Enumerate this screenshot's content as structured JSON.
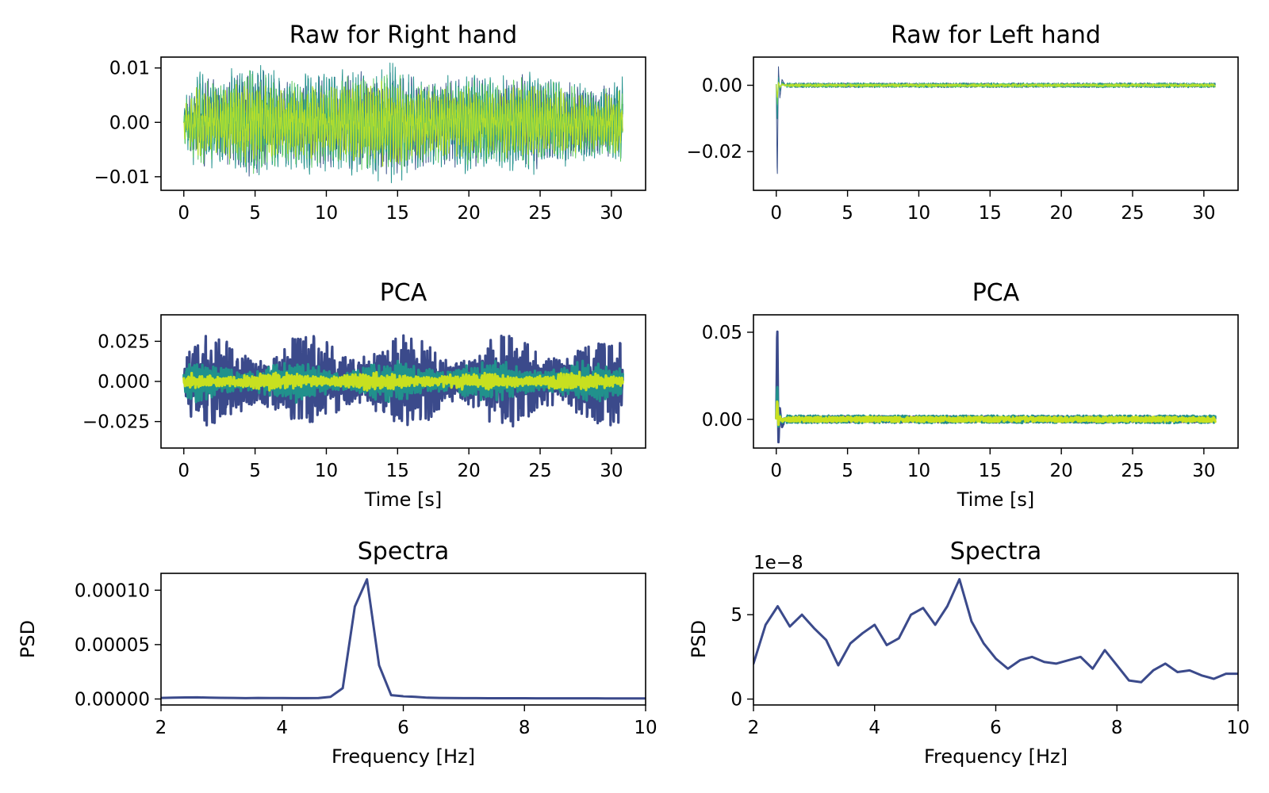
{
  "chart_data": [
    {
      "id": "raw-right",
      "type": "line",
      "title": "Raw for Right hand",
      "xlabel": "",
      "ylabel": "",
      "xlim": [
        -1.6,
        32.4
      ],
      "ylim": [
        -0.0125,
        0.012
      ],
      "xticks": [
        0,
        5,
        10,
        15,
        20,
        25,
        30
      ],
      "xtick_labels": [
        "0",
        "5",
        "10",
        "15",
        "20",
        "25",
        "30"
      ],
      "yticks": [
        -0.01,
        0.0,
        0.01
      ],
      "ytick_labels": [
        "−0.01",
        "0.00",
        "0.01"
      ],
      "grid": false,
      "signal": {
        "kind": "oscillation",
        "t_range": [
          0,
          30.8
        ],
        "carrier_hz": 5.4,
        "envelope_t": [
          0,
          1,
          2,
          3,
          4,
          5,
          6,
          7,
          8,
          9,
          10,
          11,
          12,
          13,
          14,
          15,
          16,
          17,
          18,
          19,
          20,
          21,
          22,
          23,
          24,
          25,
          26,
          27,
          28,
          29,
          30,
          30.8
        ],
        "envelope_amp": [
          0.004,
          0.009,
          0.008,
          0.009,
          0.0095,
          0.0105,
          0.009,
          0.008,
          0.0085,
          0.009,
          0.0085,
          0.009,
          0.0095,
          0.01,
          0.0105,
          0.01,
          0.009,
          0.0085,
          0.008,
          0.0085,
          0.009,
          0.0085,
          0.008,
          0.0085,
          0.009,
          0.0085,
          0.008,
          0.0075,
          0.007,
          0.0065,
          0.0075,
          0.008
        ]
      },
      "series": [
        {
          "color": "#3b528b",
          "width": 1.0,
          "scale": 0.95
        },
        {
          "color": "#21918c",
          "width": 1.0,
          "scale": 1.05
        },
        {
          "color": "#5ec962",
          "width": 1.0,
          "scale": 0.9
        },
        {
          "color": "#b5de2b",
          "width": 1.2,
          "scale": 0.75
        }
      ]
    },
    {
      "id": "raw-left",
      "type": "line",
      "title": "Raw for Left hand",
      "xlabel": "",
      "ylabel": "",
      "xlim": [
        -1.6,
        32.4
      ],
      "ylim": [
        -0.0317,
        0.0085
      ],
      "xticks": [
        0,
        5,
        10,
        15,
        20,
        25,
        30
      ],
      "xtick_labels": [
        "0",
        "5",
        "10",
        "15",
        "20",
        "25",
        "30"
      ],
      "yticks": [
        -0.02,
        0.0
      ],
      "ytick_labels": [
        "−0.02",
        "0.00"
      ],
      "grid": false,
      "signal": {
        "kind": "noise",
        "t_range": [
          0,
          30.8
        ],
        "level": 0.0007,
        "spike_t": [
          0.0,
          0.07,
          0.15,
          0.25,
          0.4,
          0.6
        ],
        "spike_y": [
          0.0,
          -0.03,
          0.006,
          -0.004,
          0.002,
          0.0
        ]
      },
      "series": [
        {
          "color": "#3b528b",
          "width": 1.0,
          "scale": 1.0
        },
        {
          "color": "#21918c",
          "width": 1.0,
          "scale": 1.1
        },
        {
          "color": "#5ec962",
          "width": 1.0,
          "scale": 0.8
        },
        {
          "color": "#b5de2b",
          "width": 1.2,
          "scale": 0.6
        }
      ]
    },
    {
      "id": "pca-right",
      "type": "line",
      "title": "PCA",
      "xlabel": "Time [s]",
      "ylabel": "",
      "xlim": [
        -1.6,
        32.4
      ],
      "ylim": [
        -0.0415,
        0.0415
      ],
      "xticks": [
        0,
        5,
        10,
        15,
        20,
        25,
        30
      ],
      "xtick_labels": [
        "0",
        "5",
        "10",
        "15",
        "20",
        "25",
        "30"
      ],
      "yticks": [
        -0.025,
        0.0,
        0.025
      ],
      "ytick_labels": [
        "−0.025",
        "0.000",
        "0.025"
      ],
      "grid": false,
      "signal": {
        "kind": "bands",
        "t_range": [
          0,
          30.8
        ]
      },
      "series": [
        {
          "color": "#3b4a8b",
          "width": 3.2,
          "amp": 0.02
        },
        {
          "color": "#21918c",
          "width": 3.2,
          "amp": 0.009
        },
        {
          "color": "#c8e020",
          "width": 3.2,
          "amp": 0.004
        }
      ]
    },
    {
      "id": "pca-left",
      "type": "line",
      "title": "PCA",
      "xlabel": "Time [s]",
      "ylabel": "",
      "xlim": [
        -1.6,
        32.4
      ],
      "ylim": [
        -0.0165,
        0.06
      ],
      "xticks": [
        0,
        5,
        10,
        15,
        20,
        25,
        30
      ],
      "xtick_labels": [
        "0",
        "5",
        "10",
        "15",
        "20",
        "25",
        "30"
      ],
      "yticks": [
        0.0,
        0.05
      ],
      "ytick_labels": [
        "0.00",
        "0.05"
      ],
      "grid": false,
      "signal": {
        "kind": "noise",
        "t_range": [
          0,
          30.8
        ],
        "level": 0.0018,
        "spike_t": [
          0.0,
          0.07,
          0.15,
          0.25,
          0.4,
          0.6
        ],
        "spike_y": [
          0.0,
          0.056,
          -0.014,
          0.006,
          -0.004,
          0.0
        ]
      },
      "series": [
        {
          "color": "#3b4a8b",
          "width": 3.0,
          "scale": 1.0
        },
        {
          "color": "#21918c",
          "width": 3.0,
          "scale": 1.2
        },
        {
          "color": "#c8e020",
          "width": 3.0,
          "scale": 0.8
        }
      ]
    },
    {
      "id": "spectra-right",
      "type": "line",
      "title": "Spectra",
      "xlabel": "Frequency [Hz]",
      "ylabel": "PSD",
      "offset_text": "",
      "xlim": [
        2,
        10
      ],
      "ylim": [
        -5.5e-06,
        0.0001155
      ],
      "xticks": [
        2,
        4,
        6,
        8,
        10
      ],
      "xtick_labels": [
        "2",
        "4",
        "6",
        "8",
        "10"
      ],
      "yticks": [
        0.0,
        5e-05,
        0.0001
      ],
      "ytick_labels": [
        "0.00000",
        "0.00005",
        "0.00010"
      ],
      "grid": false,
      "series": [
        {
          "color": "#3b4a8b",
          "width": 3.0,
          "x": [
            2.0,
            2.2,
            2.4,
            2.6,
            2.8,
            3.0,
            3.2,
            3.4,
            3.6,
            3.8,
            4.0,
            4.2,
            4.4,
            4.6,
            4.8,
            5.0,
            5.2,
            5.4,
            5.6,
            5.8,
            6.0,
            6.2,
            6.4,
            6.6,
            6.8,
            7.0,
            7.2,
            7.4,
            7.6,
            7.8,
            8.0,
            8.2,
            8.4,
            8.6,
            8.8,
            9.0,
            9.2,
            9.4,
            9.6,
            9.8,
            10.0
          ],
          "y": [
            1e-06,
            1.2e-06,
            1.4e-06,
            1.5e-06,
            1.2e-06,
            1.1e-06,
            1e-06,
            8e-07,
            1e-06,
            9e-07,
            9e-07,
            8e-07,
            8e-07,
            9e-07,
            2e-06,
            1e-05,
            8.5e-05,
            0.00011,
            3.1e-05,
            3.5e-06,
            2.5e-06,
            2e-06,
            1.2e-06,
            1e-06,
            9e-07,
            8e-07,
            8e-07,
            7e-07,
            7e-07,
            7e-07,
            7e-07,
            6e-07,
            6e-07,
            6e-07,
            6e-07,
            6e-07,
            6e-07,
            5e-07,
            5e-07,
            5e-07,
            5e-07
          ]
        }
      ]
    },
    {
      "id": "spectra-left",
      "type": "line",
      "title": "Spectra",
      "xlabel": "Frequency [Hz]",
      "ylabel": "PSD",
      "offset_text": "1e−8",
      "xlim": [
        2,
        10
      ],
      "ylim": [
        -0.35,
        7.45
      ],
      "xticks": [
        2,
        4,
        6,
        8,
        10
      ],
      "xtick_labels": [
        "2",
        "4",
        "6",
        "8",
        "10"
      ],
      "yticks": [
        0,
        5
      ],
      "ytick_labels": [
        "0",
        "5"
      ],
      "grid": false,
      "series": [
        {
          "color": "#3b4a8b",
          "width": 3.0,
          "x": [
            2.0,
            2.2,
            2.4,
            2.6,
            2.8,
            3.0,
            3.2,
            3.4,
            3.6,
            3.8,
            4.0,
            4.2,
            4.4,
            4.6,
            4.8,
            5.0,
            5.2,
            5.4,
            5.6,
            5.8,
            6.0,
            6.2,
            6.4,
            6.6,
            6.8,
            7.0,
            7.2,
            7.4,
            7.6,
            7.8,
            8.0,
            8.2,
            8.4,
            8.6,
            8.8,
            9.0,
            9.2,
            9.4,
            9.6,
            9.8,
            10.0
          ],
          "y": [
            2.1,
            4.4,
            5.5,
            4.3,
            5.0,
            4.2,
            3.5,
            2.0,
            3.3,
            3.9,
            4.4,
            3.2,
            3.6,
            5.0,
            5.4,
            4.4,
            5.5,
            7.1,
            4.6,
            3.3,
            2.4,
            1.8,
            2.3,
            2.5,
            2.2,
            2.1,
            2.3,
            2.5,
            1.8,
            2.9,
            2.0,
            1.1,
            1.0,
            1.7,
            2.1,
            1.6,
            1.7,
            1.4,
            1.2,
            1.5,
            1.5
          ]
        }
      ]
    }
  ]
}
